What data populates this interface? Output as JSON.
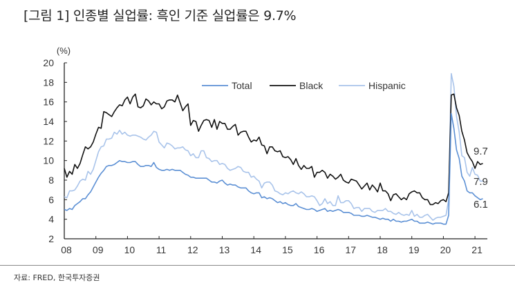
{
  "title": "[그림 1] 인종별 실업률: 흑인 기준 실업률은 9.7%",
  "source": "자료: FRED, 한국투자증권",
  "chart_data": {
    "type": "line",
    "title": "[그림 1] 인종별 실업률: 흑인 기준 실업률은 9.7%",
    "xlabel": "",
    "ylabel": "(%)",
    "ylim": [
      2,
      20
    ],
    "yticks": [
      "2",
      "4",
      "6",
      "8",
      "10",
      "12",
      "14",
      "16",
      "18",
      "20"
    ],
    "xticks": [
      "08",
      "09",
      "10",
      "11",
      "12",
      "13",
      "14",
      "15",
      "16",
      "17",
      "18",
      "19",
      "20",
      "21"
    ],
    "xrange": [
      "2008-01",
      "2021-04"
    ],
    "grid": false,
    "legend": "top-center",
    "x": [
      "2008-01",
      "2008-02",
      "2008-03",
      "2008-04",
      "2008-05",
      "2008-06",
      "2008-07",
      "2008-08",
      "2008-09",
      "2008-10",
      "2008-11",
      "2008-12",
      "2009-01",
      "2009-02",
      "2009-03",
      "2009-04",
      "2009-05",
      "2009-06",
      "2009-07",
      "2009-08",
      "2009-09",
      "2009-10",
      "2009-11",
      "2009-12",
      "2010-01",
      "2010-02",
      "2010-03",
      "2010-04",
      "2010-05",
      "2010-06",
      "2010-07",
      "2010-08",
      "2010-09",
      "2010-10",
      "2010-11",
      "2010-12",
      "2011-01",
      "2011-02",
      "2011-03",
      "2011-04",
      "2011-05",
      "2011-06",
      "2011-07",
      "2011-08",
      "2011-09",
      "2011-10",
      "2011-11",
      "2011-12",
      "2012-01",
      "2012-02",
      "2012-03",
      "2012-04",
      "2012-05",
      "2012-06",
      "2012-07",
      "2012-08",
      "2012-09",
      "2012-10",
      "2012-11",
      "2012-12",
      "2013-01",
      "2013-02",
      "2013-03",
      "2013-04",
      "2013-05",
      "2013-06",
      "2013-07",
      "2013-08",
      "2013-09",
      "2013-10",
      "2013-11",
      "2013-12",
      "2014-01",
      "2014-02",
      "2014-03",
      "2014-04",
      "2014-05",
      "2014-06",
      "2014-07",
      "2014-08",
      "2014-09",
      "2014-10",
      "2014-11",
      "2014-12",
      "2015-01",
      "2015-02",
      "2015-03",
      "2015-04",
      "2015-05",
      "2015-06",
      "2015-07",
      "2015-08",
      "2015-09",
      "2015-10",
      "2015-11",
      "2015-12",
      "2016-01",
      "2016-02",
      "2016-03",
      "2016-04",
      "2016-05",
      "2016-06",
      "2016-07",
      "2016-08",
      "2016-09",
      "2016-10",
      "2016-11",
      "2016-12",
      "2017-01",
      "2017-02",
      "2017-03",
      "2017-04",
      "2017-05",
      "2017-06",
      "2017-07",
      "2017-08",
      "2017-09",
      "2017-10",
      "2017-11",
      "2017-12",
      "2018-01",
      "2018-02",
      "2018-03",
      "2018-04",
      "2018-05",
      "2018-06",
      "2018-07",
      "2018-08",
      "2018-09",
      "2018-10",
      "2018-11",
      "2018-12",
      "2019-01",
      "2019-02",
      "2019-03",
      "2019-04",
      "2019-05",
      "2019-06",
      "2019-07",
      "2019-08",
      "2019-09",
      "2019-10",
      "2019-11",
      "2019-12",
      "2020-01",
      "2020-02",
      "2020-03",
      "2020-04",
      "2020-05",
      "2020-06",
      "2020-07",
      "2020-08",
      "2020-09",
      "2020-10",
      "2020-11",
      "2020-12",
      "2021-01",
      "2021-02",
      "2021-03",
      "2021-04"
    ],
    "series": [
      {
        "name": "Total",
        "color": "#5b8fd4",
        "end_label": "6.1",
        "values": [
          5.0,
          4.9,
          5.1,
          5.0,
          5.4,
          5.6,
          5.8,
          6.1,
          6.1,
          6.5,
          6.8,
          7.3,
          7.8,
          8.3,
          8.7,
          9.0,
          9.4,
          9.5,
          9.5,
          9.6,
          9.8,
          10.0,
          9.9,
          9.9,
          9.8,
          9.8,
          9.9,
          9.9,
          9.6,
          9.4,
          9.4,
          9.5,
          9.5,
          9.4,
          9.8,
          9.3,
          9.1,
          9.0,
          9.0,
          9.1,
          9.0,
          9.1,
          9.0,
          9.0,
          9.0,
          8.8,
          8.6,
          8.5,
          8.3,
          8.3,
          8.2,
          8.2,
          8.2,
          8.2,
          8.2,
          8.0,
          7.8,
          7.8,
          7.7,
          7.9,
          8.0,
          7.7,
          7.5,
          7.6,
          7.5,
          7.5,
          7.3,
          7.2,
          7.2,
          7.2,
          6.9,
          6.7,
          6.6,
          6.7,
          6.7,
          6.2,
          6.3,
          6.1,
          6.2,
          6.1,
          5.9,
          5.7,
          5.8,
          5.6,
          5.7,
          5.5,
          5.4,
          5.4,
          5.6,
          5.3,
          5.2,
          5.1,
          5.0,
          5.0,
          5.1,
          5.0,
          4.8,
          4.9,
          5.0,
          5.1,
          4.8,
          4.9,
          4.8,
          4.9,
          5.0,
          4.9,
          4.7,
          4.7,
          4.7,
          4.6,
          4.4,
          4.4,
          4.4,
          4.3,
          4.3,
          4.4,
          4.3,
          4.2,
          4.2,
          4.1,
          4.0,
          4.1,
          4.0,
          4.0,
          3.8,
          4.0,
          3.8,
          3.8,
          3.7,
          3.8,
          3.8,
          3.9,
          4.0,
          3.8,
          3.8,
          3.6,
          3.6,
          3.6,
          3.7,
          3.6,
          3.5,
          3.6,
          3.6,
          3.6,
          3.5,
          3.5,
          4.4,
          14.8,
          13.3,
          11.1,
          10.2,
          8.4,
          7.9,
          6.9,
          6.7,
          6.7,
          6.4,
          6.2,
          6.0,
          6.1
        ]
      },
      {
        "name": "Black",
        "color": "#111111",
        "end_label": "9.7",
        "values": [
          9.2,
          8.3,
          8.9,
          8.6,
          9.6,
          9.2,
          9.7,
          10.6,
          11.4,
          11.2,
          11.4,
          11.9,
          12.7,
          13.4,
          13.3,
          15.0,
          14.9,
          14.7,
          14.5,
          15.0,
          15.4,
          15.7,
          15.6,
          16.2,
          16.5,
          15.8,
          16.5,
          16.8,
          15.5,
          15.4,
          15.6,
          16.3,
          16.1,
          15.7,
          16.0,
          15.8,
          15.8,
          15.3,
          15.5,
          16.1,
          16.2,
          16.2,
          16.0,
          16.7,
          15.9,
          15.1,
          15.5,
          15.8,
          13.6,
          14.1,
          14.0,
          13.0,
          13.6,
          14.1,
          14.2,
          14.1,
          13.4,
          14.2,
          13.2,
          14.0,
          13.8,
          13.8,
          13.2,
          13.2,
          13.5,
          13.7,
          12.6,
          12.9,
          13.0,
          13.0,
          12.4,
          11.9,
          12.1,
          12.0,
          12.4,
          11.6,
          11.5,
          10.7,
          11.4,
          11.4,
          11.0,
          10.9,
          11.0,
          10.4,
          10.3,
          10.4,
          10.1,
          9.6,
          10.2,
          9.5,
          9.1,
          9.5,
          9.2,
          9.2,
          9.4,
          8.3,
          8.8,
          8.8,
          9.0,
          8.8,
          8.2,
          8.6,
          8.4,
          8.1,
          8.3,
          8.6,
          8.0,
          7.8,
          7.7,
          8.1,
          8.0,
          7.9,
          7.5,
          7.1,
          7.4,
          7.7,
          7.0,
          7.5,
          7.2,
          6.8,
          7.7,
          6.9,
          6.9,
          6.6,
          5.9,
          6.5,
          6.6,
          6.3,
          6.0,
          6.2,
          6.0,
          6.6,
          6.8,
          6.9,
          6.7,
          6.7,
          6.2,
          6.0,
          6.0,
          5.5,
          5.5,
          5.7,
          5.6,
          5.9,
          6.0,
          5.8,
          6.7,
          16.7,
          16.8,
          15.4,
          14.6,
          13.0,
          12.1,
          10.8,
          10.3,
          9.9,
          9.2,
          9.9,
          9.6,
          9.7
        ]
      },
      {
        "name": "Hispanic",
        "color": "#a8c3ea",
        "end_label": "7.9",
        "values": [
          6.3,
          6.2,
          6.9,
          6.9,
          7.0,
          7.4,
          7.9,
          8.1,
          8.0,
          8.9,
          8.6,
          9.1,
          10.0,
          10.9,
          11.4,
          11.5,
          12.2,
          12.2,
          12.3,
          12.9,
          12.7,
          13.1,
          12.7,
          12.9,
          12.6,
          12.5,
          12.6,
          12.6,
          12.5,
          12.4,
          12.2,
          12.1,
          12.4,
          12.6,
          13.0,
          12.9,
          11.9,
          11.6,
          11.3,
          11.8,
          11.7,
          11.5,
          11.2,
          11.3,
          11.3,
          11.4,
          11.1,
          11.0,
          10.5,
          10.7,
          10.3,
          10.3,
          11.0,
          11.0,
          10.3,
          10.2,
          9.9,
          10.0,
          10.0,
          9.6,
          9.7,
          9.6,
          9.2,
          9.0,
          9.1,
          9.2,
          9.4,
          9.3,
          8.9,
          8.8,
          8.8,
          8.3,
          8.4,
          8.1,
          7.9,
          7.2,
          7.7,
          7.8,
          7.8,
          7.5,
          6.9,
          6.8,
          6.6,
          6.5,
          6.7,
          6.6,
          6.8,
          6.9,
          6.7,
          6.6,
          6.8,
          6.6,
          6.3,
          6.3,
          6.4,
          6.3,
          5.9,
          5.4,
          5.6,
          6.1,
          5.6,
          5.8,
          5.4,
          5.4,
          6.4,
          5.7,
          5.7,
          5.9,
          5.9,
          5.6,
          5.1,
          5.2,
          5.2,
          4.8,
          5.1,
          5.1,
          5.1,
          4.8,
          4.7,
          4.9,
          4.9,
          4.9,
          5.1,
          4.8,
          4.8,
          4.6,
          4.5,
          4.7,
          4.5,
          4.4,
          4.5,
          4.4,
          4.9,
          4.3,
          4.5,
          4.2,
          4.2,
          4.4,
          4.5,
          4.2,
          3.9,
          4.1,
          4.2,
          4.2,
          4.3,
          4.4,
          6.0,
          18.9,
          17.6,
          14.5,
          12.9,
          10.5,
          10.3,
          8.8,
          8.4,
          9.3,
          8.6,
          8.5,
          7.9,
          7.9
        ]
      }
    ]
  }
}
